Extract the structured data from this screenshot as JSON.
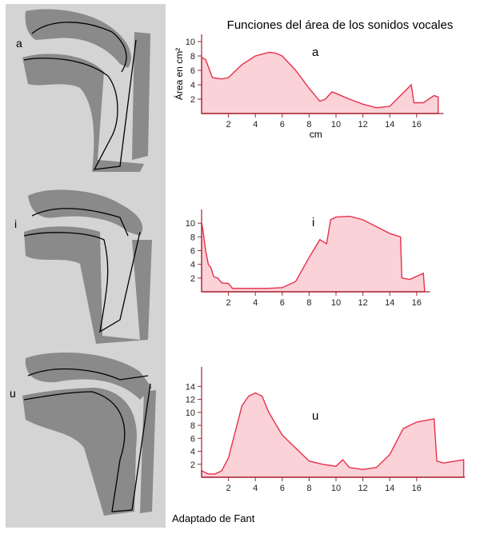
{
  "title": "Funciones del área de los sonidos vocales",
  "credit": "Adaptado de Fant",
  "vocal_tract_labels": [
    "a",
    "i",
    "u"
  ],
  "chart_data": [
    {
      "type": "area",
      "ylabel": "Área en cm²",
      "xlabel": "cm",
      "x": [
        0,
        0.3,
        0.6,
        0.8,
        1.5,
        2,
        3,
        4,
        5,
        5.5,
        6,
        7,
        8,
        8.8,
        9.2,
        9.7,
        10,
        11,
        12,
        13,
        14,
        14.8,
        15.6,
        15.8,
        16.5,
        17.3,
        17.6
      ],
      "series": [
        {
          "name": "a",
          "color": "#e8304a",
          "values": [
            7.8,
            7.5,
            6,
            5,
            4.8,
            5,
            6.8,
            8,
            8.5,
            8.4,
            8,
            6,
            3.5,
            1.7,
            2,
            3,
            2.8,
            2,
            1.3,
            0.8,
            1,
            2.5,
            4,
            1.5,
            1.5,
            2.5,
            2.3
          ]
        }
      ],
      "xlim": [
        0,
        18
      ],
      "ylim": [
        0,
        11
      ],
      "xticks": [
        2,
        4,
        6,
        8,
        10,
        12,
        14,
        16
      ],
      "yticks": [
        2,
        4,
        6,
        8,
        10
      ]
    },
    {
      "type": "area",
      "x": [
        0,
        0.1,
        0.3,
        0.5,
        0.7,
        0.9,
        1.2,
        1.5,
        2,
        2.3,
        3,
        4,
        5,
        6,
        7,
        8,
        8.8,
        9.3,
        9.6,
        10,
        11,
        12,
        13,
        14,
        14.8,
        14.9,
        15.5,
        16.5,
        16.6
      ],
      "series": [
        {
          "name": "i",
          "color": "#e8304a",
          "values": [
            10,
            9,
            6,
            4,
            3.5,
            2.2,
            2,
            1.3,
            1.2,
            0.5,
            0.5,
            0.5,
            0.5,
            0.6,
            1.5,
            5,
            7.6,
            7,
            10.5,
            10.9,
            11,
            10.5,
            9.5,
            8.5,
            8,
            2,
            1.8,
            2.7,
            0
          ]
        }
      ],
      "xlim": [
        0,
        17
      ],
      "ylim": [
        0,
        12
      ],
      "xticks": [
        2,
        4,
        6,
        8,
        10,
        12,
        14,
        16
      ],
      "yticks": [
        2,
        4,
        6,
        8,
        10
      ]
    },
    {
      "type": "area",
      "x": [
        0,
        0.5,
        1,
        1.5,
        2,
        2.5,
        3,
        3.5,
        4,
        4.5,
        5,
        6,
        7,
        8,
        9,
        10,
        10.5,
        11,
        12,
        13,
        14,
        15,
        16,
        17.3,
        17.5,
        18,
        19.5
      ],
      "series": [
        {
          "name": "u",
          "color": "#e8304a",
          "values": [
            1,
            0.5,
            0.5,
            1,
            3,
            7,
            11,
            12.5,
            13,
            12.5,
            10,
            6.5,
            4.5,
            2.5,
            2,
            1.7,
            2.7,
            1.5,
            1.2,
            1.5,
            3.5,
            7.5,
            8.5,
            9,
            2.5,
            2.2,
            2.7
          ]
        }
      ],
      "xlim": [
        0,
        19.6
      ],
      "ylim": [
        0,
        17
      ],
      "xticks": [
        2,
        4,
        6,
        8,
        10,
        12,
        14,
        16
      ],
      "yticks": [
        2,
        4,
        6,
        8,
        10,
        12,
        14
      ]
    }
  ]
}
